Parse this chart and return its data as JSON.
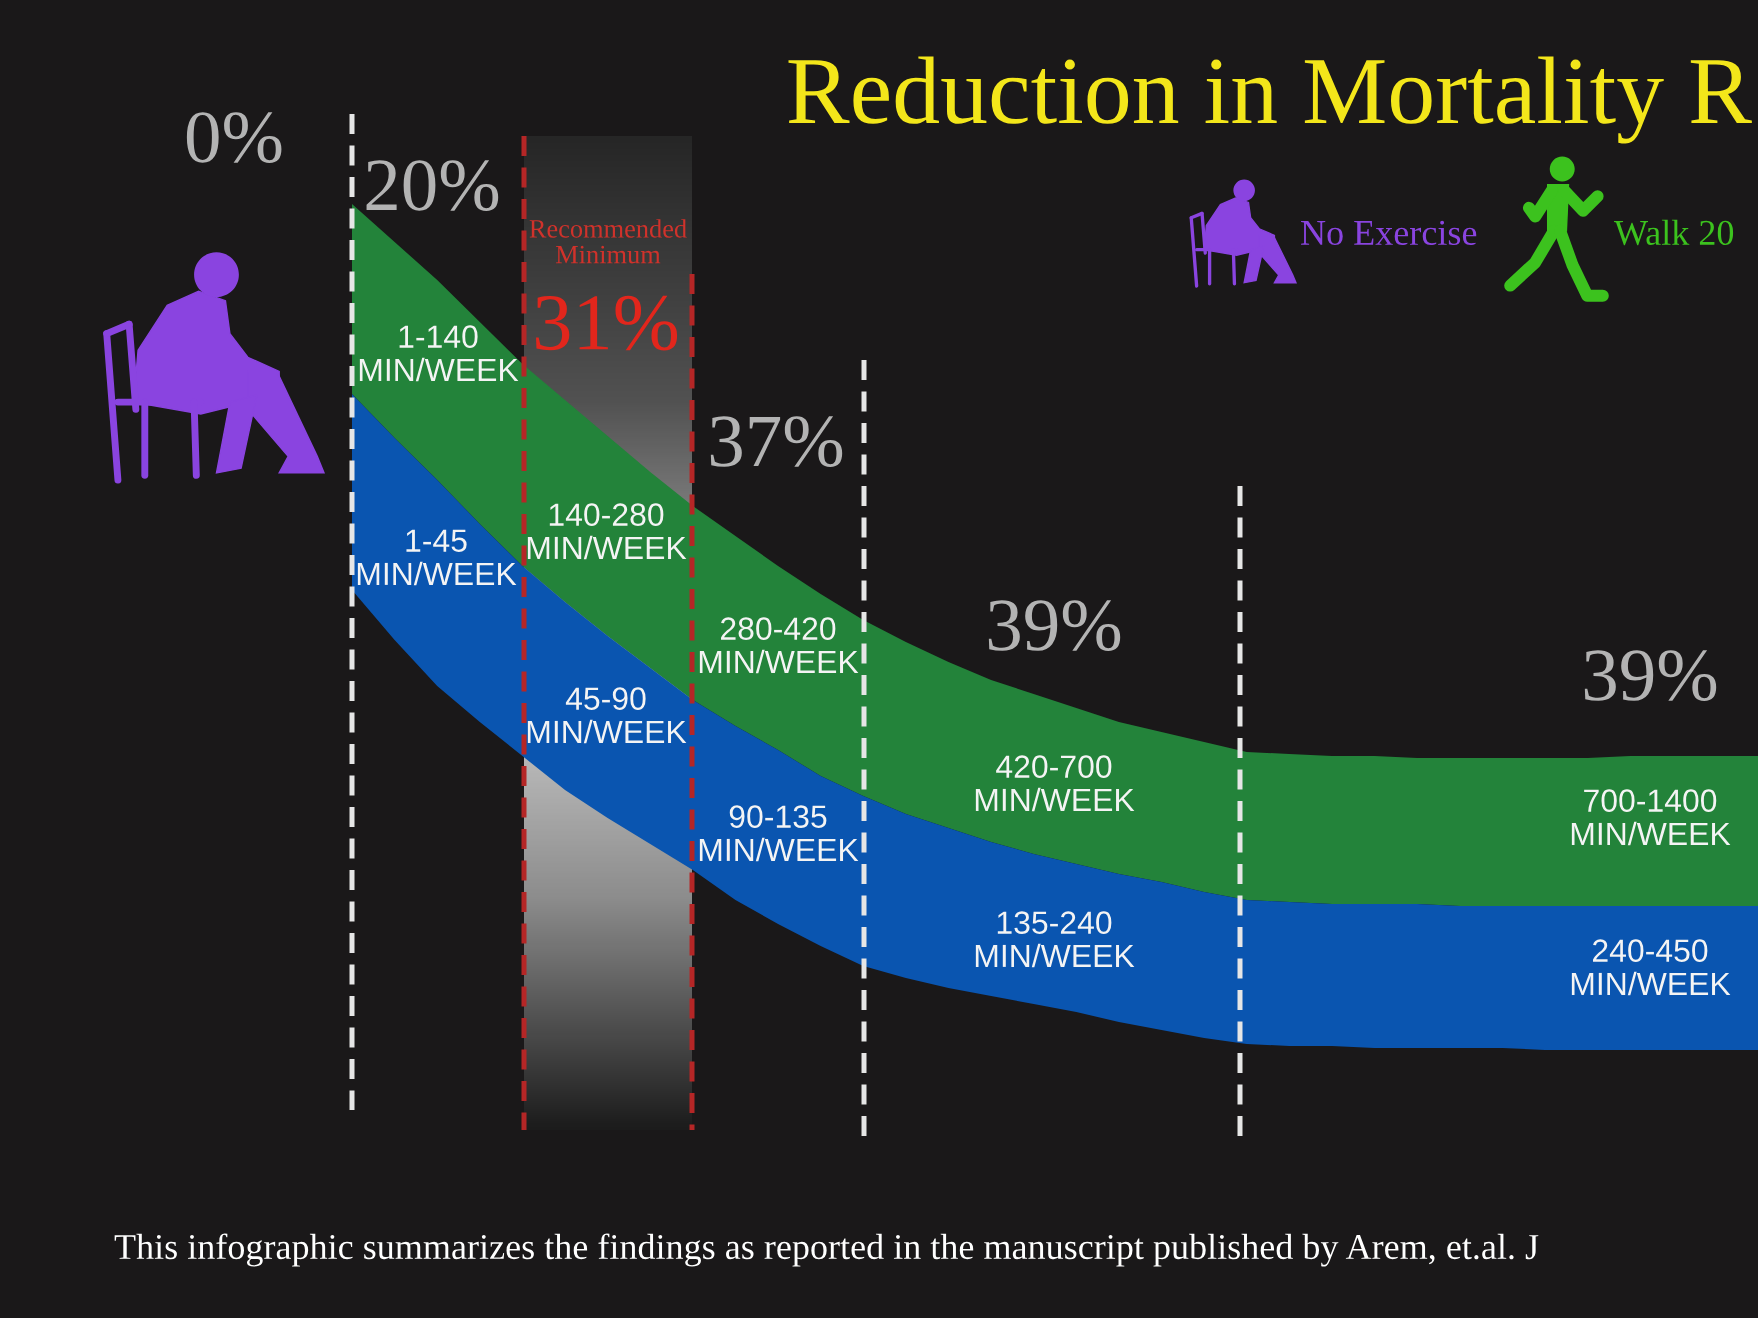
{
  "chart_data": {
    "type": "other",
    "title": "Reduction in Mortality R",
    "categories": [
      null,
      null,
      null,
      null,
      null,
      null
    ],
    "values": [
      0,
      20,
      31,
      37,
      39,
      39
    ],
    "value_labels": [
      "0%",
      "20%",
      "31%",
      "37%",
      "39%",
      "39%"
    ],
    "annotations": [
      "1-140 MIN/WEEK",
      "1-45 MIN/WEEK",
      "140-280 MIN/WEEK",
      "45-90 MIN/WEEK",
      "280-420 MIN/WEEK",
      "90-135 MIN/WEEK",
      "420-700 MIN/WEEK",
      "135-240 MIN/WEEK",
      "700-1400 MIN/WEEK",
      "240-450 MIN/WEEK",
      "Recommended Minimum",
      "No Exercise",
      "Walk 20",
      "This infographic summarizes the findings as reported in the manuscript published by Arem, et.al. J"
    ]
  }
}
